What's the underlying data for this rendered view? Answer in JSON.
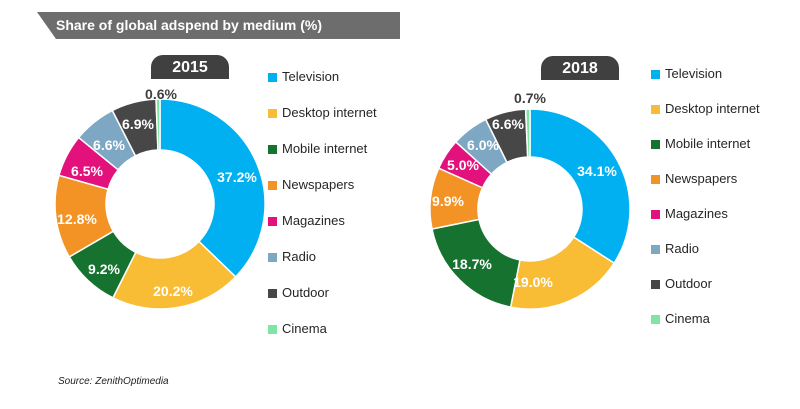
{
  "header": {
    "title": "Share of global adspend by medium (%)",
    "banner_color": "#6d6d6d"
  },
  "source": "Source: ZenithOptimedia",
  "colors": {
    "Television": "#00b0f0",
    "Desktop internet": "#f9bc35",
    "Mobile internet": "#15722f",
    "Newspapers": "#f39325",
    "Magazines": "#e2117b",
    "Radio": "#7da7c2",
    "Outdoor": "#474747",
    "Cinema": "#7fe5a3"
  },
  "chart_data": [
    {
      "type": "pie",
      "title": "2015",
      "categories": [
        "Television",
        "Desktop internet",
        "Mobile internet",
        "Newspapers",
        "Magazines",
        "Radio",
        "Outdoor",
        "Cinema"
      ],
      "values": [
        37.2,
        20.2,
        9.2,
        12.8,
        6.5,
        6.6,
        6.9,
        0.6
      ],
      "labels": [
        "37.2%",
        "20.2%",
        "9.2%",
        "12.8%",
        "6.5%",
        "6.6%",
        "6.9%",
        "0.6%"
      ],
      "legend": [
        "Television",
        "Desktop internet",
        "Mobile internet",
        "Newspapers",
        "Magazines",
        "Radio",
        "Outdoor",
        "Cinema"
      ]
    },
    {
      "type": "pie",
      "title": "2018",
      "categories": [
        "Television",
        "Desktop internet",
        "Mobile internet",
        "Newspapers",
        "Magazines",
        "Radio",
        "Outdoor",
        "Cinema"
      ],
      "values": [
        34.1,
        19.0,
        18.7,
        9.9,
        5.0,
        6.0,
        6.6,
        0.7
      ],
      "labels": [
        "34.1%",
        "19.0%",
        "18.7%",
        "9.9%",
        "5.0%",
        "6.0%",
        "6.6%",
        "0.7%"
      ],
      "legend": [
        "Television",
        "Desktop internet",
        "Mobile internet",
        "Newspapers",
        "Magazines",
        "Radio",
        "Outdoor",
        "Cinema"
      ]
    }
  ]
}
